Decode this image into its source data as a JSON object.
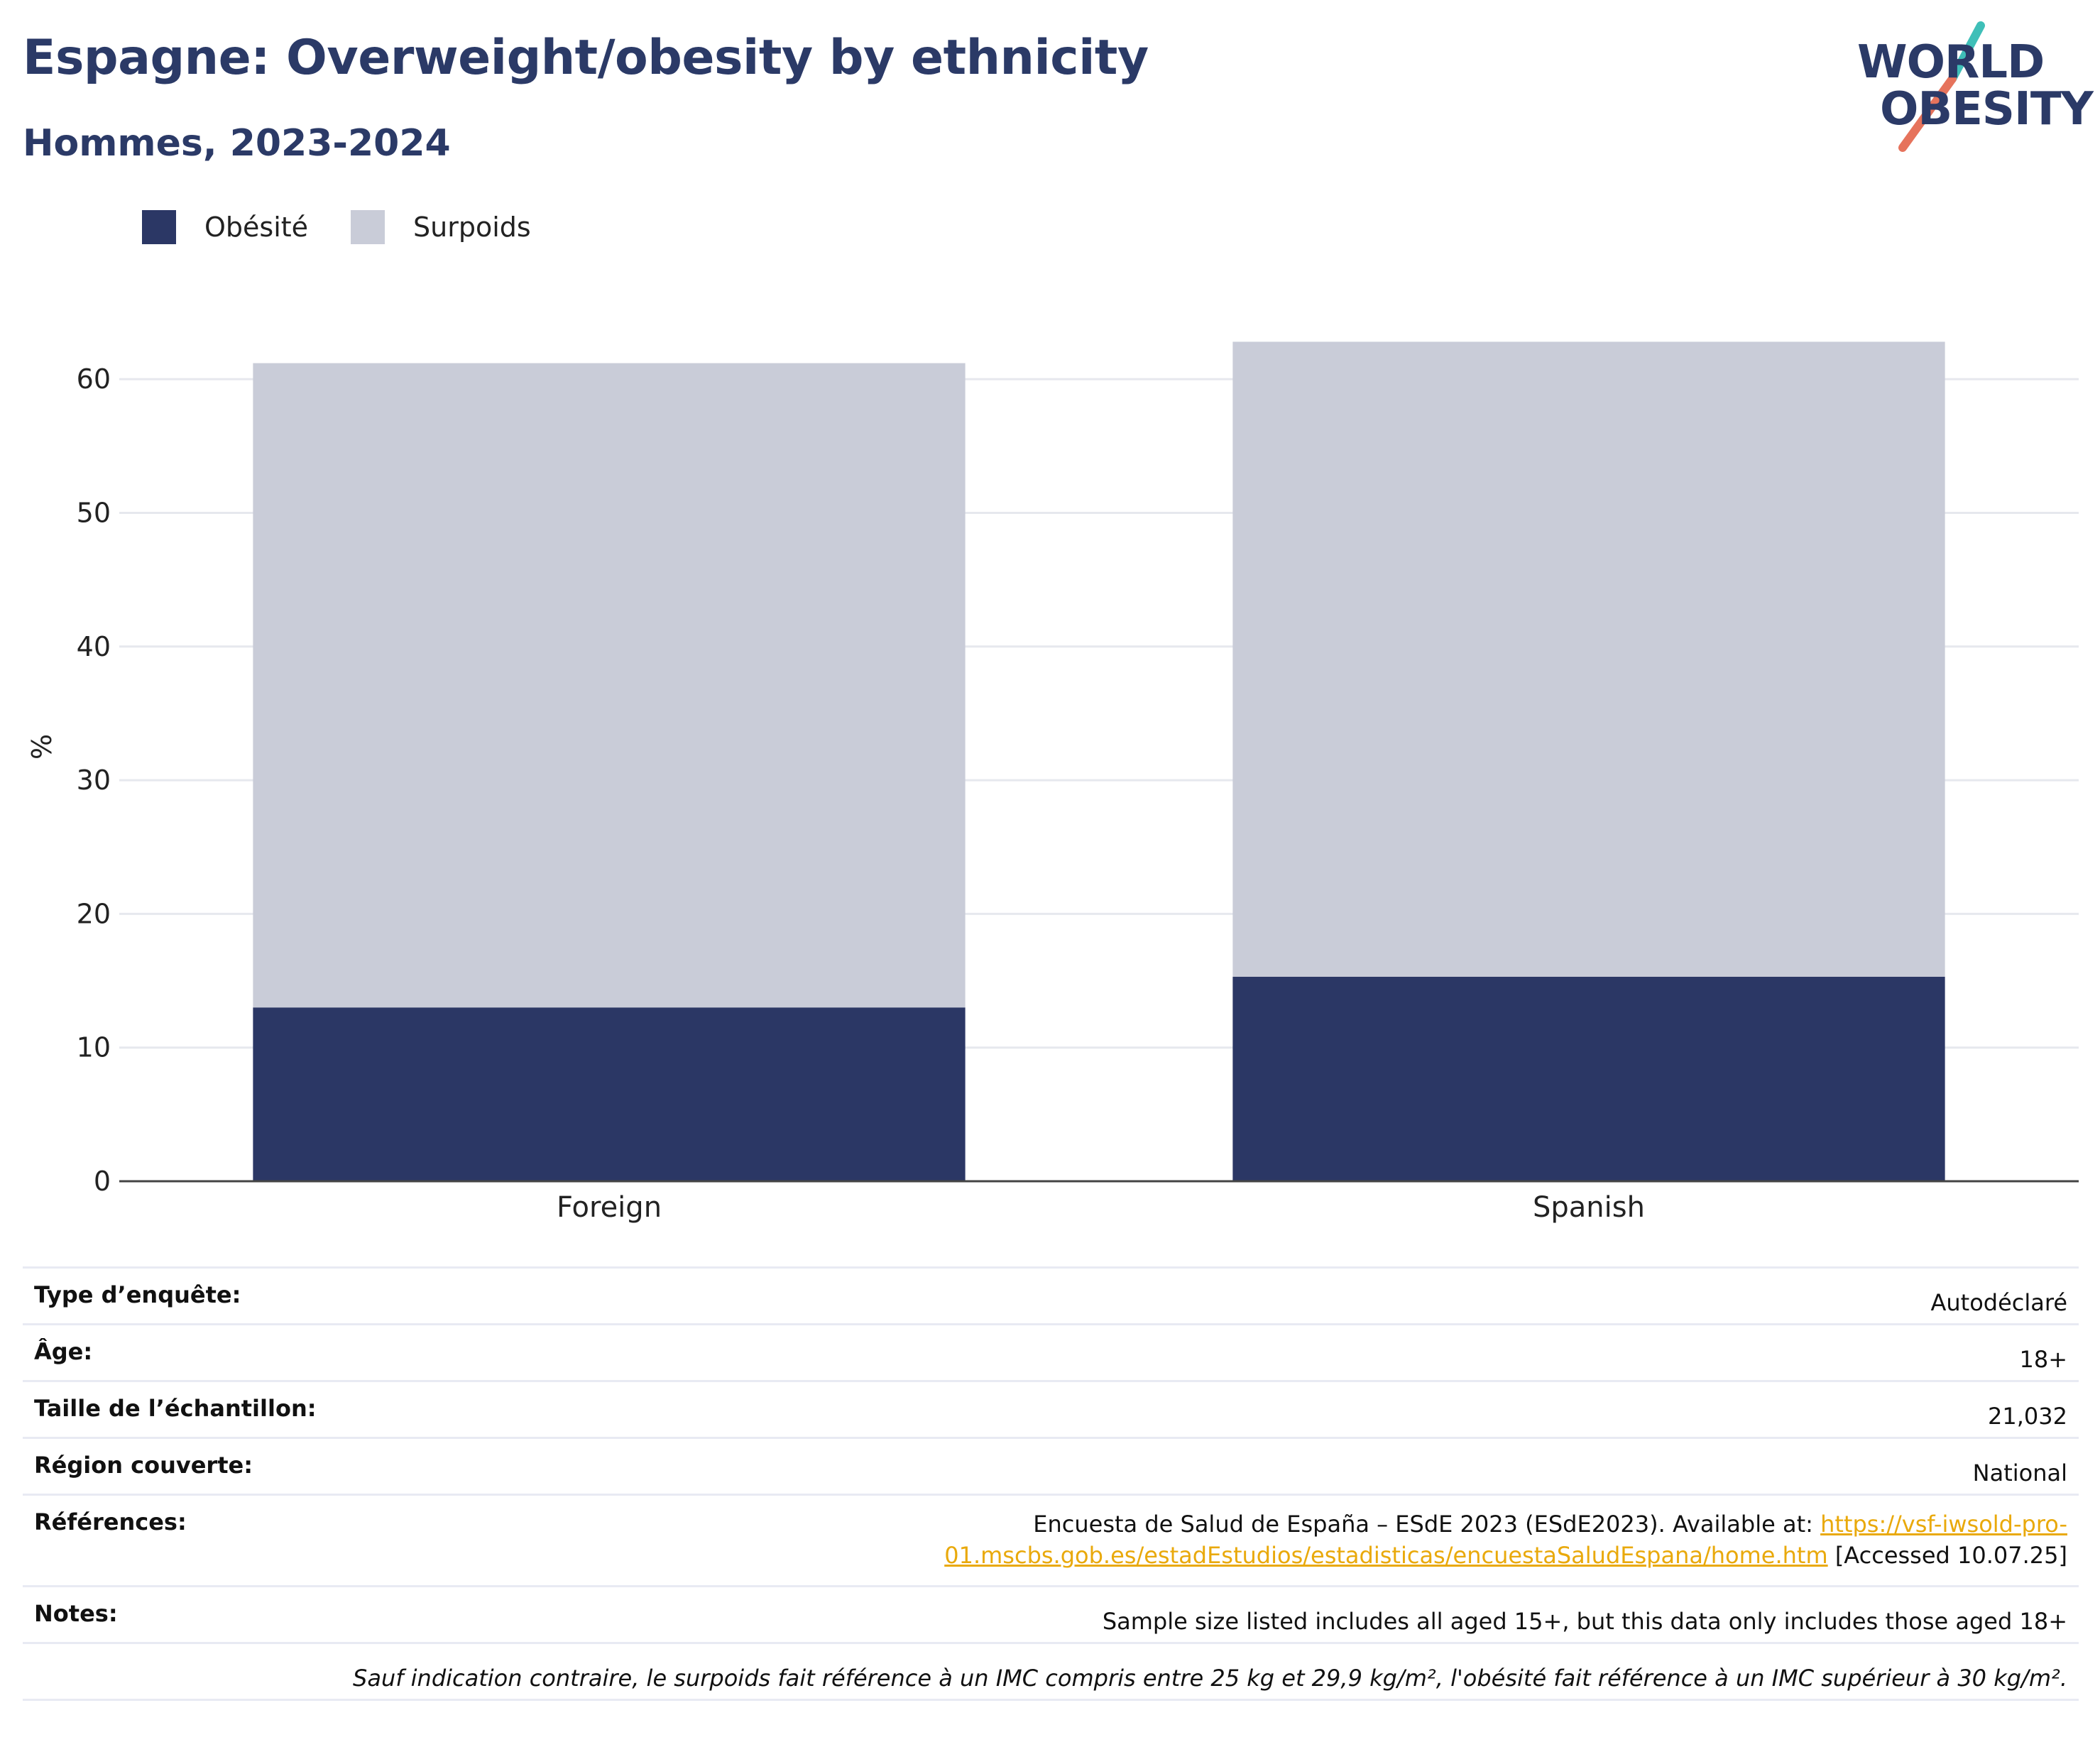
{
  "header": {
    "title": "Espagne: Overweight/obesity by ethnicity",
    "subtitle": "Hommes, 2023-2024"
  },
  "logo": {
    "line1": "WORLD",
    "line2": "OBESITY"
  },
  "colors": {
    "obesity": "#2b3765",
    "overweight": "#c9ccd8",
    "title": "#2b3a67",
    "link": "#e9a90b",
    "logo_slash_top": "#3fbfb8",
    "logo_slash_bottom": "#e6735c"
  },
  "legend": [
    {
      "label": "Obésité",
      "color": "#2b3765"
    },
    {
      "label": "Surpoids",
      "color": "#c9ccd8"
    }
  ],
  "chart_data": {
    "type": "bar",
    "stacked": true,
    "categories": [
      "Foreign",
      "Spanish"
    ],
    "series": [
      {
        "name": "Obésité",
        "values": [
          13.0,
          15.3
        ]
      },
      {
        "name": "Surpoids",
        "values": [
          48.2,
          47.5
        ]
      }
    ],
    "ylabel": "%",
    "ylim": [
      0,
      65
    ],
    "yticks": [
      0,
      10,
      20,
      30,
      40,
      50,
      60
    ],
    "grid": true,
    "legend_position": "top-left"
  },
  "meta": {
    "survey_type_label": "Type d’enquête:",
    "survey_type_value": "Autodéclaré",
    "age_label": "Âge:",
    "age_value": "18+",
    "sample_label": "Taille de l’échantillon:",
    "sample_value": "21,032",
    "region_label": "Région couverte:",
    "region_value": "National",
    "refs_label": "Références:",
    "refs_text": "Encuesta de Salud de España – ESdE 2023 (ESdE2023). Available at: ",
    "refs_link_1": "https://vsf-iwsold-pro-",
    "refs_link_2": "01.mscbs.gob.es/estadEstudios/estadisticas/encuestaSaludEspana/home.htm",
    "refs_accessed": " [Accessed 10.07.25]",
    "notes_label": "Notes:",
    "notes_value": "Sample size listed includes all aged 15+, but this data only includes those aged 18+",
    "footnote": "Sauf indication contraire, le surpoids fait référence à un IMC compris entre 25 kg et 29,9 kg/m², l'obésité fait référence à un IMC supérieur à 30 kg/m²."
  }
}
